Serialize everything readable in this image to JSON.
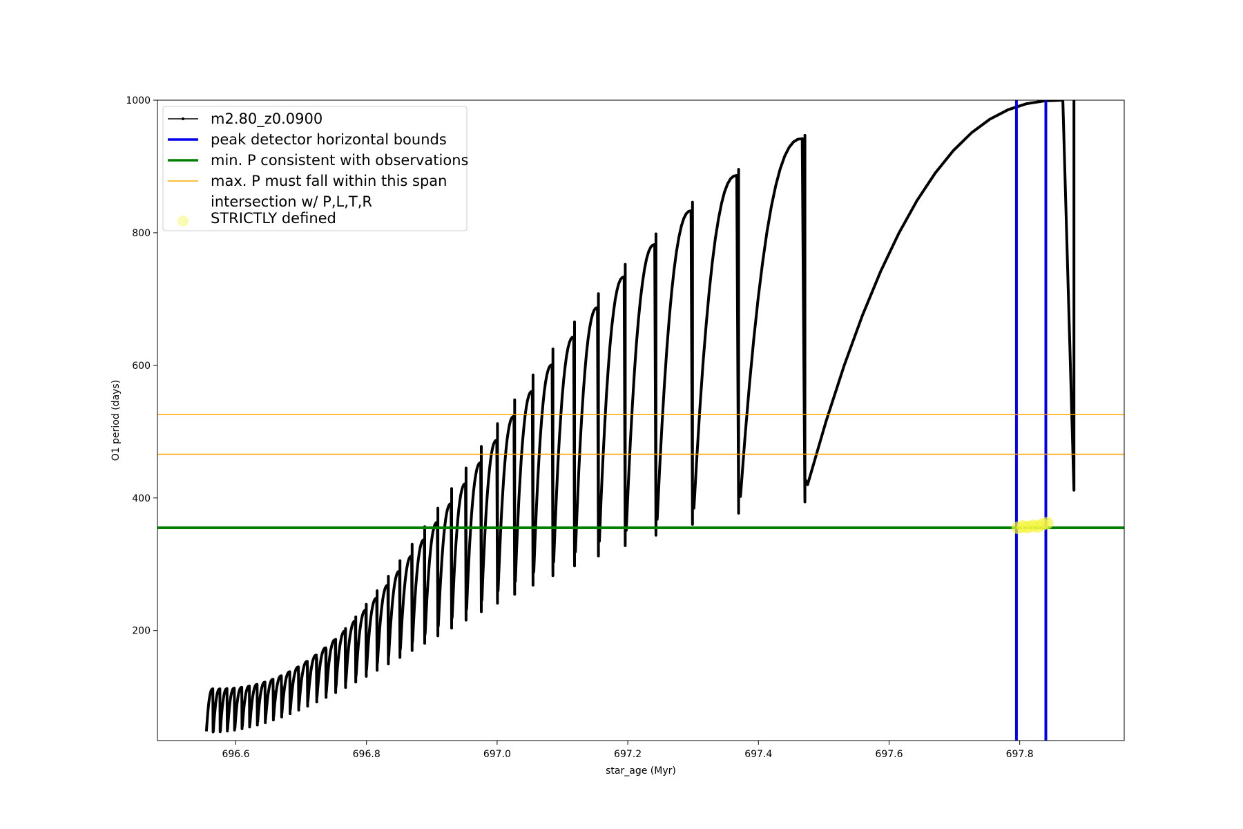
{
  "chart_data": {
    "type": "line",
    "title": "",
    "xlabel": "star_age (Myr)",
    "ylabel": "O1 period (days)",
    "xlim": [
      696.48,
      697.96
    ],
    "ylim": [
      34,
      1000
    ],
    "x_ticks": [
      696.6,
      696.8,
      697.0,
      697.2,
      697.4,
      697.6,
      697.8
    ],
    "y_ticks": [
      200,
      400,
      600,
      800,
      1000
    ],
    "grid": false,
    "legend_position": "top-left",
    "series": [
      {
        "name": "m2.80_z0.0900",
        "style": "line-with-dots",
        "color": "#000000",
        "pulse_cycles": {
          "x_start": 696.555,
          "x_end": 697.9,
          "count": 40,
          "growth_exponent": 3.2,
          "trough_first": 48,
          "trough_last": 420,
          "peak_first": 112,
          "peak_last": 1000,
          "spike_first": 85,
          "spike_last": 1000
        }
      }
    ],
    "reference_lines": [
      {
        "name": "peak detector horizontal bounds",
        "orientation": "vertical",
        "values": [
          697.795,
          697.84
        ],
        "color": "#0000ee"
      },
      {
        "name": "min. P consistent with observations",
        "orientation": "horizontal",
        "values": [
          355
        ],
        "color": "#008000"
      },
      {
        "name": "max. P must fall within this span",
        "orientation": "horizontal",
        "values": [
          466,
          526
        ],
        "color": "#ffa500"
      }
    ],
    "highlight_points": {
      "name": "intersection w/ P,L,T,R\nSTRICTLY defined",
      "color": "#f5f542",
      "points": [
        {
          "x": 697.797,
          "y": 355
        },
        {
          "x": 697.805,
          "y": 357
        },
        {
          "x": 697.812,
          "y": 356
        },
        {
          "x": 697.82,
          "y": 358
        },
        {
          "x": 697.828,
          "y": 357
        },
        {
          "x": 697.835,
          "y": 360
        },
        {
          "x": 697.842,
          "y": 362
        }
      ]
    },
    "legend": [
      {
        "label": "m2.80_z0.0900",
        "kind": "line-dot",
        "color": "#000000"
      },
      {
        "label": "peak detector horizontal bounds",
        "kind": "line",
        "color": "#0000ee"
      },
      {
        "label": "min. P consistent with observations",
        "kind": "line",
        "color": "#008000"
      },
      {
        "label": "max. P must fall within this span",
        "kind": "thin-line",
        "color": "#ffa500"
      },
      {
        "label": "intersection w/ P,L,T,R\nSTRICTLY defined",
        "kind": "marker",
        "color": "#f5f542"
      }
    ]
  }
}
